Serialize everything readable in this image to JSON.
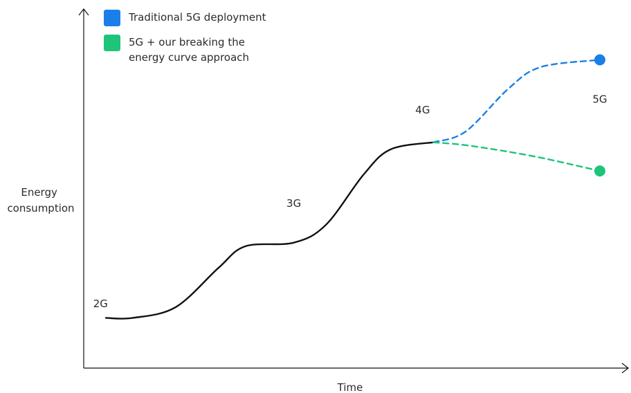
{
  "chart_data": {
    "type": "line",
    "title": "",
    "xlabel": "Time",
    "ylabel": "Energy\nconsumption",
    "grid": false,
    "legend_placement": "top-left",
    "x_range": [
      0,
      1
    ],
    "y_range": [
      0,
      1
    ],
    "generation_labels": [
      {
        "text": "2G",
        "x": 0.03,
        "y": 0.17
      },
      {
        "text": "3G",
        "x": 0.39,
        "y": 0.45
      },
      {
        "text": "4G",
        "x": 0.63,
        "y": 0.71
      },
      {
        "text": "5G",
        "x": 0.96,
        "y": 0.74
      }
    ],
    "series": [
      {
        "name": "",
        "color": "#111111",
        "style": "solid",
        "points": [
          [
            0.04,
            0.14
          ],
          [
            0.09,
            0.14
          ],
          [
            0.17,
            0.17
          ],
          [
            0.25,
            0.28
          ],
          [
            0.3,
            0.34
          ],
          [
            0.39,
            0.35
          ],
          [
            0.45,
            0.4
          ],
          [
            0.52,
            0.54
          ],
          [
            0.57,
            0.61
          ],
          [
            0.65,
            0.63
          ]
        ]
      },
      {
        "name": "Traditional 5G deployment",
        "color": "#1a7fe8",
        "style": "dashed",
        "points": [
          [
            0.65,
            0.63
          ],
          [
            0.71,
            0.66
          ],
          [
            0.79,
            0.78
          ],
          [
            0.85,
            0.84
          ],
          [
            0.96,
            0.86
          ]
        ],
        "end_marker": true
      },
      {
        "name": "5G + our breaking the energy curve approach",
        "color": "#1ec47a",
        "style": "dashed",
        "points": [
          [
            0.65,
            0.63
          ],
          [
            0.72,
            0.62
          ],
          [
            0.84,
            0.59
          ],
          [
            0.96,
            0.55
          ]
        ],
        "end_marker": true
      }
    ]
  },
  "legend": [
    {
      "label": "Traditional 5G deployment",
      "color": "#1a7fe8"
    },
    {
      "label": "5G + our breaking the energy curve approach",
      "color": "#1ec47a"
    }
  ]
}
